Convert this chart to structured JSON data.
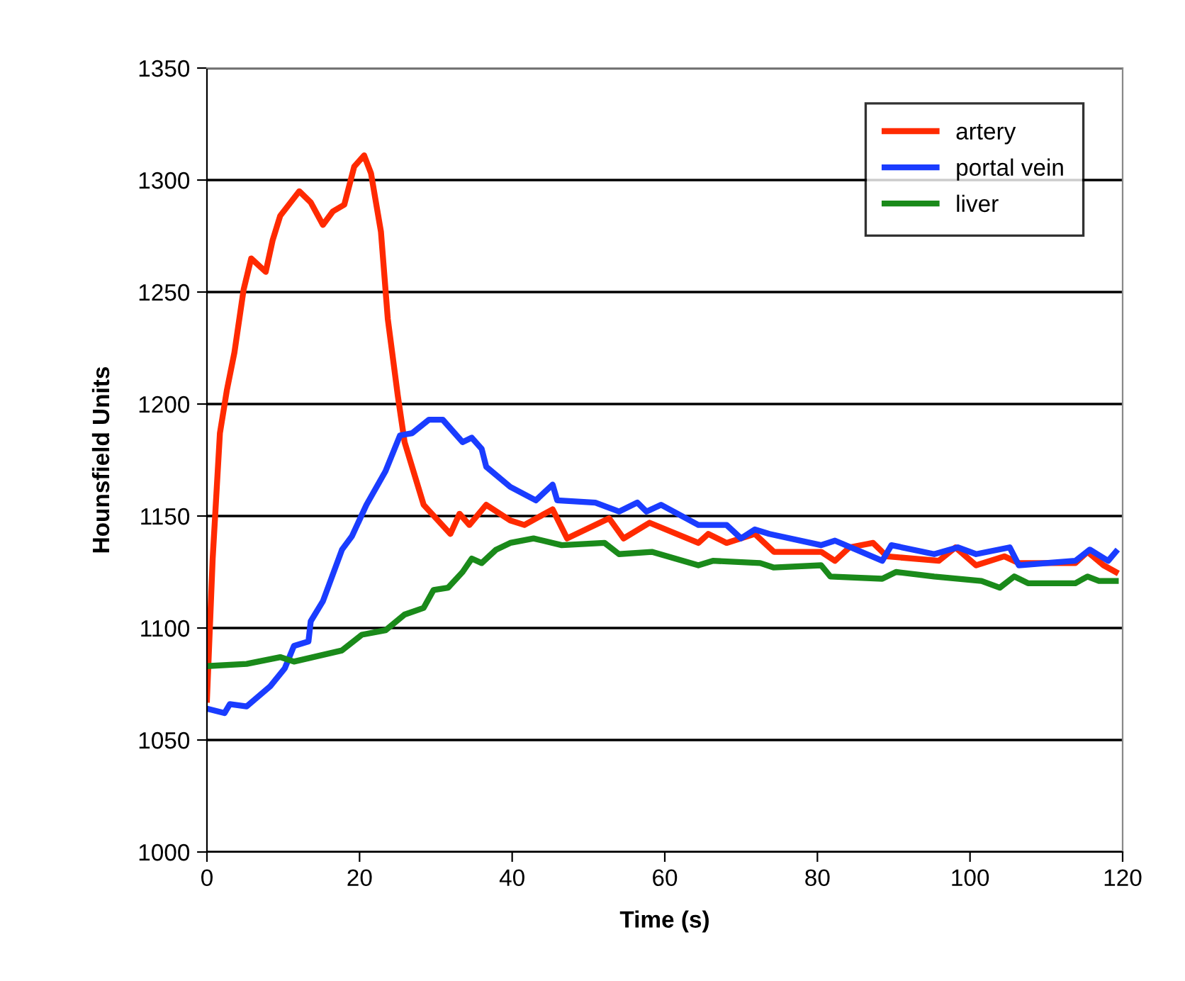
{
  "chart_data": {
    "type": "line",
    "xlabel": "Time (s)",
    "ylabel": "Hounsfield Units",
    "xlim": [
      0,
      120
    ],
    "xticks": [
      0,
      20,
      40,
      60,
      80,
      100,
      120
    ],
    "ylim": [
      1000,
      1350
    ],
    "yticks": [
      1000,
      1050,
      1100,
      1150,
      1200,
      1250,
      1300,
      1350
    ],
    "grid": "y",
    "legend": "top right",
    "marker": "none",
    "line_style": "solid",
    "series": [
      {
        "name": "artery",
        "color": "#ff2a00",
        "x": [
          0,
          0.75,
          1.7,
          2.6,
          3.6,
          4.8,
          5.8,
          7.7,
          8.6,
          9.6,
          12.1,
          13.6,
          15.2,
          16.5,
          18,
          19.3,
          20.6,
          21.5,
          22.8,
          23.7,
          25,
          25.9,
          28.4,
          31.9,
          33.1,
          34.4,
          36.6,
          39.75,
          41.6,
          45.3,
          47.2,
          52.7,
          54.6,
          58,
          64.4,
          65.7,
          68.1,
          71.8,
          74.3,
          80.5,
          82.3,
          84.2,
          87.3,
          89.1,
          95.9,
          98.1,
          100.8,
          104.5,
          106.4,
          113.8,
          115.4,
          117.5,
          119.1
        ],
        "values": [
          1068,
          1131,
          1187,
          1206,
          1223,
          1251,
          1265,
          1259,
          1273,
          1284,
          1295,
          1290,
          1280,
          1286,
          1289,
          1306,
          1311,
          1303,
          1277,
          1238,
          1204,
          1183,
          1155,
          1142,
          1151,
          1146,
          1155,
          1148,
          1146,
          1153,
          1140,
          1149,
          1140,
          1147,
          1138,
          1142,
          1138,
          1142,
          1134,
          1134,
          1130,
          1136,
          1138,
          1132,
          1130,
          1136,
          1128,
          1132,
          1129,
          1129,
          1134,
          1128,
          1125
        ]
      },
      {
        "name": "portal vein",
        "color": "#1a3cff",
        "x": [
          0,
          2.3,
          3,
          5.2,
          8.3,
          10.2,
          11.4,
          13.3,
          13.6,
          15.2,
          17.7,
          19,
          20.9,
          23.4,
          25.3,
          26.9,
          29.1,
          30.9,
          33.5,
          34.7,
          36,
          36.6,
          39.75,
          43.1,
          45.3,
          45.9,
          50.9,
          54,
          56.4,
          57.6,
          59.5,
          64.4,
          68.1,
          70,
          71.8,
          73.7,
          80.5,
          82.3,
          88.5,
          89.7,
          95.3,
          98.4,
          100.8,
          105.2,
          106.4,
          113.8,
          115.7,
          118.1,
          119.1
        ],
        "values": [
          1064,
          1062,
          1066,
          1065,
          1074,
          1082,
          1092,
          1094,
          1103,
          1112,
          1135,
          1141,
          1155,
          1170,
          1186,
          1187,
          1193,
          1193,
          1183,
          1185,
          1180,
          1172,
          1163,
          1157,
          1164,
          1157,
          1156,
          1152,
          1156,
          1152,
          1155,
          1146,
          1146,
          1140,
          1144,
          1142,
          1137,
          1139,
          1130,
          1137,
          1133,
          1136,
          1133,
          1136,
          1128,
          1130,
          1135,
          1130,
          1134
        ]
      },
      {
        "name": "liver",
        "color": "#1a8a1a",
        "x": [
          0,
          5.2,
          9.6,
          11.4,
          17.7,
          20.3,
          23.4,
          25.9,
          28.4,
          29.7,
          31.6,
          33.5,
          34.7,
          36,
          37.9,
          39.75,
          42.8,
          46.5,
          52.1,
          54,
          58.3,
          64.4,
          66.3,
          72.5,
          74.3,
          80.5,
          81.7,
          88.5,
          90.3,
          95.3,
          101.5,
          103.9,
          105.8,
          107.6,
          113.8,
          115.4,
          116.9,
          119.1
        ],
        "values": [
          1083,
          1084,
          1087,
          1085,
          1090,
          1097,
          1099,
          1106,
          1109,
          1117,
          1118,
          1125,
          1131,
          1129,
          1135,
          1138,
          1140,
          1137,
          1138,
          1133,
          1134,
          1128,
          1130,
          1129,
          1127,
          1128,
          1123,
          1122,
          1125,
          1123,
          1121,
          1118,
          1123,
          1120,
          1120,
          1123,
          1121,
          1121
        ]
      }
    ]
  }
}
